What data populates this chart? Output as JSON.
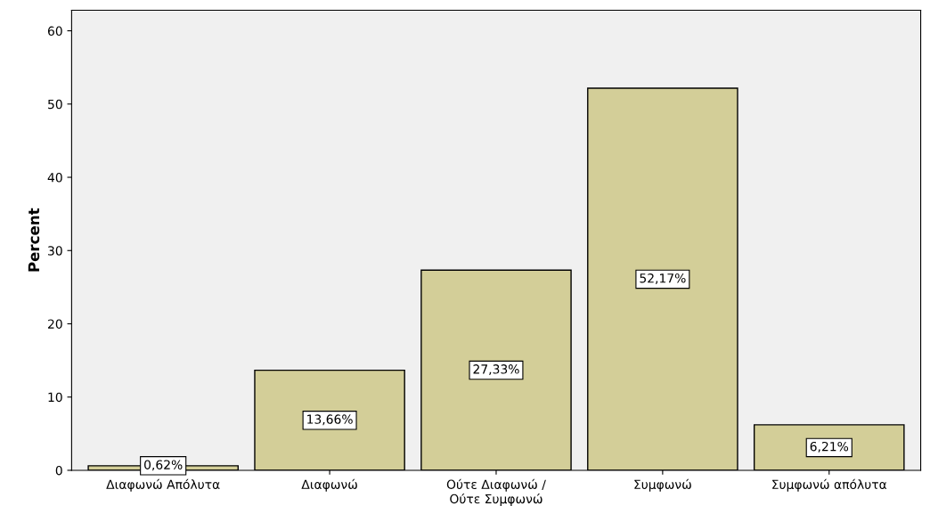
{
  "chart_data": {
    "type": "bar",
    "ylabel": "Percent",
    "categories": [
      "Διαφωνώ Απόλυτα",
      "Διαφωνώ",
      "Ούτε Διαφωνώ /\nΟύτε Συμφωνώ",
      "Συμφωνώ",
      "Συμφωνώ απόλυτα"
    ],
    "values": [
      0.62,
      13.66,
      27.33,
      52.17,
      6.21
    ],
    "value_labels": [
      "0,62%",
      "13,66%",
      "27,33%",
      "52,17%",
      "6,21%"
    ],
    "color": "#d3ce98",
    "ylim": [
      0,
      62.8
    ],
    "yticks": [
      0,
      10,
      20,
      30,
      40,
      50,
      60
    ],
    "grid": false,
    "legend": false
  }
}
